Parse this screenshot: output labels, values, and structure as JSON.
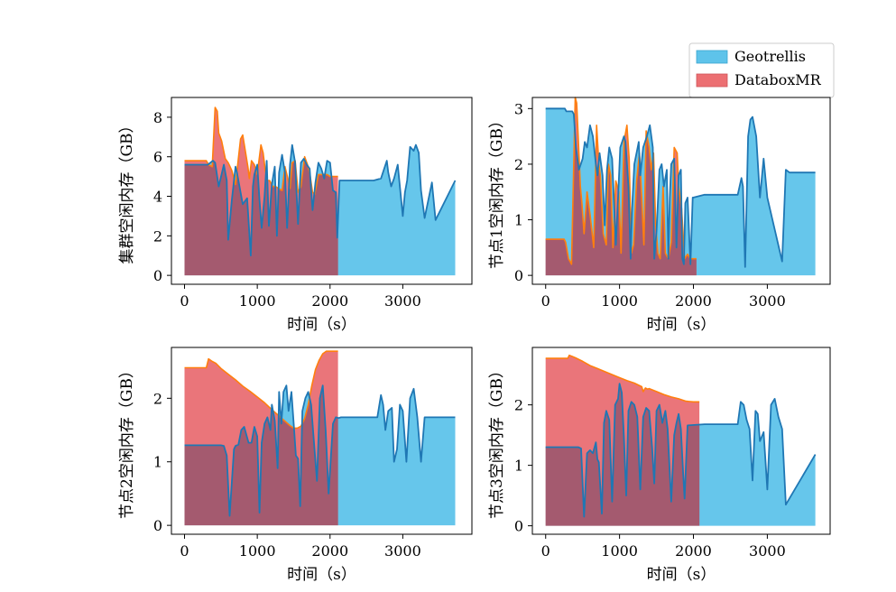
{
  "legend": {
    "placement": "top-right",
    "entries": [
      {
        "label": "Geotrellis",
        "color": "#5ec3ea"
      },
      {
        "label": "DataboxMR",
        "color": "#ec6f72"
      }
    ]
  },
  "colors": {
    "geotrellis_fill": "#5ec3ea",
    "geotrellis_line": "#1f77b4",
    "databox_fill": "#e8666c",
    "databox_line": "#ff7f0e",
    "overlap": "#a45a6f"
  },
  "chart_data": [
    {
      "type": "area",
      "xlabel": "时间（s）",
      "ylabel": "集群空闲内存（GB）",
      "xlim": [
        -180,
        3950
      ],
      "ylim": [
        -0.45,
        9.0
      ],
      "xticks": [
        0,
        1000,
        2000,
        3000
      ],
      "yticks": [
        0,
        2,
        4,
        6,
        8
      ],
      "grid": false,
      "series": [
        {
          "name": "Geotrellis",
          "end": 3720,
          "x": [
            0,
            150,
            320,
            390,
            420,
            470,
            540,
            580,
            600,
            650,
            700,
            720,
            800,
            860,
            910,
            940,
            960,
            1000,
            1030,
            1060,
            1100,
            1130,
            1160,
            1200,
            1240,
            1270,
            1300,
            1340,
            1380,
            1410,
            1450,
            1480,
            1520,
            1560,
            1600,
            1640,
            1680,
            1720,
            1760,
            1800,
            1840,
            1880,
            1920,
            1960,
            2000,
            2040,
            2080,
            2100,
            2130,
            2150,
            2600,
            2700,
            2780,
            2800,
            2840,
            2880,
            2930,
            3000,
            3030,
            3060,
            3100,
            3150,
            3180,
            3220,
            3250,
            3300,
            3400,
            3450,
            3720
          ],
          "y": [
            5.6,
            5.6,
            5.6,
            5.8,
            5.7,
            4.5,
            5.6,
            4.8,
            1.8,
            3.8,
            5.5,
            5.2,
            3.6,
            3.9,
            1.0,
            4.5,
            5.1,
            5.6,
            3.8,
            2.4,
            4.0,
            5.8,
            2.5,
            4.6,
            5.5,
            2.0,
            5.2,
            6.1,
            5.2,
            2.4,
            5.6,
            6.6,
            5.7,
            2.6,
            5.7,
            5.9,
            5.6,
            5.4,
            3.3,
            4.7,
            5.7,
            5.4,
            4.9,
            5.8,
            5.7,
            4.3,
            4.2,
            1.9,
            4.8,
            4.8,
            4.8,
            4.9,
            5.8,
            5.2,
            4.5,
            4.9,
            5.6,
            3.0,
            4.2,
            4.8,
            6.5,
            6.3,
            6.6,
            6.2,
            4.3,
            2.9,
            4.7,
            2.8,
            4.8
          ]
        },
        {
          "name": "DataboxMR",
          "end": 2110,
          "x": [
            0,
            300,
            330,
            380,
            420,
            450,
            470,
            510,
            560,
            600,
            650,
            700,
            770,
            800,
            840,
            870,
            890,
            920,
            960,
            1000,
            1050,
            1080,
            1110,
            1140,
            1170,
            1210,
            1250,
            1290,
            1340,
            1380,
            1420,
            1450,
            1480,
            1520,
            1560,
            1600,
            1650,
            1690,
            1720,
            1760,
            1790,
            1840,
            1880,
            1920,
            1960,
            2000,
            2050,
            2110
          ],
          "y": [
            5.8,
            5.8,
            5.6,
            5.5,
            8.5,
            8.3,
            7.2,
            6.8,
            5.9,
            5.7,
            5.3,
            4.6,
            6.9,
            7.1,
            6.2,
            5.5,
            4.9,
            5.8,
            5.6,
            5.1,
            6.6,
            6.2,
            5.3,
            4.8,
            4.8,
            4.5,
            4.5,
            4.4,
            4.3,
            5.5,
            4.9,
            4.4,
            5.7,
            5.8,
            4.2,
            4.5,
            6.0,
            5.6,
            5.2,
            4.2,
            4.1,
            5.1,
            5.1,
            5.1,
            5.1,
            5.0,
            5.0,
            5.0
          ]
        }
      ]
    },
    {
      "type": "area",
      "xlabel": "时间（s）",
      "ylabel": "节点1空闲内存（GB）",
      "xlim": [
        -180,
        3850
      ],
      "ylim": [
        -0.16,
        3.2
      ],
      "xticks": [
        0,
        1000,
        2000,
        3000
      ],
      "yticks": [
        0,
        1,
        2,
        3
      ],
      "grid": false,
      "series": [
        {
          "name": "Geotrellis",
          "end": 3650,
          "x": [
            0,
            260,
            280,
            320,
            360,
            380,
            410,
            450,
            500,
            530,
            560,
            600,
            640,
            680,
            700,
            730,
            770,
            800,
            830,
            860,
            900,
            950,
            980,
            1010,
            1060,
            1080,
            1120,
            1150,
            1170,
            1200,
            1260,
            1280,
            1320,
            1370,
            1410,
            1450,
            1470,
            1500,
            1540,
            1570,
            1600,
            1640,
            1660,
            1680,
            1700,
            1740,
            1770,
            1800,
            1830,
            1850,
            1870,
            1890,
            1920,
            1960,
            1990,
            2000,
            2150,
            2600,
            2650,
            2670,
            2700,
            2740,
            2770,
            2800,
            2850,
            2900,
            2950,
            3000,
            3200,
            3250,
            3300,
            3650
          ],
          "y": [
            3.0,
            3.0,
            2.95,
            2.95,
            2.95,
            2.9,
            2.3,
            1.9,
            2.1,
            2.4,
            2.3,
            2.7,
            2.5,
            2.0,
            1.8,
            2.2,
            1.8,
            0.9,
            1.9,
            2.3,
            2.1,
            0.55,
            1.4,
            2.3,
            2.5,
            2.4,
            1.6,
            0.3,
            1.2,
            2.0,
            2.4,
            1.8,
            2.3,
            2.5,
            2.7,
            2.3,
            0.3,
            0.8,
            1.9,
            2.0,
            1.6,
            1.9,
            0.3,
            1.4,
            2.0,
            2.1,
            0.5,
            1.8,
            1.9,
            0.3,
            0.2,
            1.3,
            1.4,
            0.2,
            1.4,
            1.4,
            1.45,
            1.45,
            1.75,
            1.6,
            0.15,
            2.5,
            2.8,
            2.85,
            2.5,
            1.4,
            2.1,
            1.4,
            0.25,
            1.9,
            1.85,
            1.85
          ]
        },
        {
          "name": "DataboxMR",
          "end": 2040,
          "x": [
            0,
            250,
            270,
            310,
            350,
            400,
            420,
            440,
            470,
            490,
            520,
            560,
            600,
            650,
            690,
            720,
            740,
            780,
            820,
            850,
            880,
            910,
            950,
            990,
            1020,
            1060,
            1100,
            1130,
            1160,
            1190,
            1230,
            1270,
            1300,
            1330,
            1360,
            1400,
            1430,
            1460,
            1490,
            1520,
            1550,
            1590,
            1620,
            1660,
            1700,
            1740,
            1780,
            1800,
            1840,
            1880,
            1920,
            1960,
            2040
          ],
          "y": [
            0.65,
            0.65,
            0.6,
            0.3,
            0.2,
            3.2,
            3.1,
            2.5,
            1.6,
            1.3,
            0.75,
            1.5,
            1.1,
            0.5,
            2.7,
            2.0,
            1.8,
            0.75,
            0.55,
            2.0,
            1.8,
            0.5,
            1.7,
            1.5,
            0.4,
            2.4,
            2.7,
            2.1,
            0.4,
            0.55,
            1.7,
            2.2,
            1.4,
            0.55,
            2.6,
            2.3,
            1.9,
            2.2,
            0.9,
            0.4,
            0.3,
            1.6,
            0.4,
            0.3,
            0.6,
            2.3,
            2.2,
            1.6,
            1.2,
            0.3,
            0.38,
            0.3,
            0.3
          ]
        }
      ]
    },
    {
      "type": "area",
      "xlabel": "时间（s）",
      "ylabel": "节点2空闲内存（GB）",
      "xlim": [
        -180,
        3950
      ],
      "ylim": [
        -0.14,
        2.8
      ],
      "xticks": [
        0,
        1000,
        2000,
        3000
      ],
      "yticks": [
        0,
        1,
        2
      ],
      "grid": false,
      "series": [
        {
          "name": "Geotrellis",
          "end": 3720,
          "x": [
            0,
            500,
            540,
            580,
            620,
            680,
            700,
            740,
            780,
            820,
            880,
            920,
            960,
            1000,
            1030,
            1060,
            1100,
            1140,
            1180,
            1200,
            1240,
            1280,
            1300,
            1330,
            1360,
            1400,
            1430,
            1470,
            1500,
            1530,
            1560,
            1590,
            1620,
            1660,
            1700,
            1740,
            1780,
            1820,
            1860,
            1900,
            1940,
            1980,
            2040,
            2080,
            2120,
            2150,
            2650,
            2700,
            2730,
            2760,
            2800,
            2850,
            2880,
            2920,
            2960,
            3000,
            3050,
            3100,
            3150,
            3200,
            3250,
            3300,
            3720
          ],
          "y": [
            1.26,
            1.26,
            1.25,
            1.1,
            0.15,
            1.2,
            1.25,
            1.27,
            1.5,
            1.55,
            1.3,
            1.3,
            1.55,
            1.4,
            0.2,
            1.3,
            1.6,
            1.7,
            1.5,
            1.9,
            1.65,
            0.9,
            2.1,
            1.6,
            2.1,
            2.2,
            1.8,
            2.1,
            1.6,
            1.1,
            1.05,
            0.3,
            1.8,
            2.0,
            2.1,
            1.9,
            1.3,
            0.7,
            2.0,
            2.2,
            1.5,
            0.5,
            1.6,
            1.7,
            1.69,
            1.7,
            1.7,
            2.05,
            1.9,
            1.5,
            1.8,
            1.85,
            1.0,
            1.2,
            1.9,
            1.8,
            1.0,
            2.0,
            2.15,
            1.7,
            1.0,
            1.7,
            1.7
          ]
        },
        {
          "name": "DataboxMR",
          "end": 2110,
          "x": [
            0,
            300,
            330,
            380,
            430,
            500,
            600,
            700,
            800,
            900,
            1000,
            1100,
            1200,
            1300,
            1400,
            1450,
            1500,
            1550,
            1600,
            1650,
            1700,
            1750,
            1800,
            1850,
            1900,
            1950,
            2000,
            2110
          ],
          "y": [
            2.48,
            2.48,
            2.62,
            2.58,
            2.55,
            2.47,
            2.38,
            2.29,
            2.19,
            2.11,
            2.02,
            1.93,
            1.82,
            1.72,
            1.62,
            1.57,
            1.53,
            1.53,
            1.56,
            1.68,
            1.9,
            2.2,
            2.45,
            2.6,
            2.7,
            2.74,
            2.74,
            2.74
          ]
        }
      ]
    },
    {
      "type": "area",
      "xlabel": "时间（s）",
      "ylabel": "节点3空闲内存（GB）",
      "xlim": [
        -180,
        3850
      ],
      "ylim": [
        -0.14,
        2.95
      ],
      "xticks": [
        0,
        1000,
        2000,
        3000
      ],
      "yticks": [
        0,
        1,
        2
      ],
      "grid": false,
      "series": [
        {
          "name": "Geotrellis",
          "end": 3650,
          "x": [
            0,
            420,
            440,
            480,
            520,
            560,
            600,
            640,
            680,
            700,
            720,
            760,
            790,
            820,
            860,
            900,
            940,
            980,
            1000,
            1030,
            1060,
            1090,
            1120,
            1160,
            1200,
            1240,
            1280,
            1320,
            1360,
            1400,
            1440,
            1470,
            1500,
            1540,
            1580,
            1620,
            1650,
            1700,
            1740,
            1770,
            1800,
            1830,
            1860,
            1880,
            1920,
            2150,
            2600,
            2640,
            2680,
            2720,
            2760,
            2800,
            2840,
            2870,
            2900,
            2950,
            3000,
            3050,
            3100,
            3150,
            3200,
            3250,
            3650
          ],
          "y": [
            1.3,
            1.3,
            1.3,
            1.28,
            0.15,
            1.2,
            1.25,
            1.2,
            1.38,
            1.1,
            1.05,
            0.2,
            1.7,
            1.9,
            1.75,
            0.4,
            2.0,
            2.1,
            2.35,
            2.2,
            1.45,
            0.5,
            1.9,
            2.05,
            2.0,
            1.8,
            0.6,
            1.8,
            1.95,
            1.9,
            1.3,
            0.7,
            1.9,
            2.0,
            1.7,
            1.9,
            1.6,
            0.4,
            1.5,
            1.7,
            1.85,
            1.6,
            0.9,
            0.45,
            1.66,
            1.68,
            1.68,
            2.05,
            2.0,
            1.75,
            1.6,
            0.75,
            1.9,
            1.85,
            1.4,
            1.55,
            0.6,
            2.0,
            2.1,
            1.8,
            1.6,
            0.35,
            1.18
          ]
        },
        {
          "name": "DataboxMR",
          "end": 2080,
          "x": [
            0,
            300,
            320,
            360,
            400,
            500,
            600,
            700,
            800,
            900,
            1000,
            1100,
            1200,
            1300,
            1320,
            1350,
            1380,
            1400,
            1500,
            1600,
            1700,
            1800,
            1900,
            2000,
            2080
          ],
          "y": [
            2.77,
            2.77,
            2.82,
            2.8,
            2.78,
            2.72,
            2.65,
            2.6,
            2.55,
            2.5,
            2.45,
            2.4,
            2.36,
            2.3,
            2.22,
            2.28,
            2.26,
            2.27,
            2.22,
            2.17,
            2.13,
            2.1,
            2.06,
            2.05,
            2.05
          ]
        }
      ]
    }
  ]
}
